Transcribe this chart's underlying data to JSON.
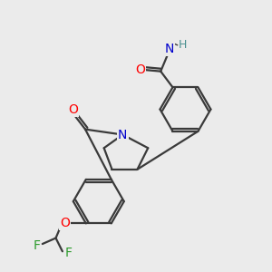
{
  "bg_color": "#ebebeb",
  "bond_color": "#3a3a3a",
  "bond_width": 1.6,
  "atom_colors": {
    "O": "#ff0000",
    "N_blue": "#0000cc",
    "N_teal": "#4a9090",
    "F": "#2a9a2a",
    "H": "#4a8888"
  },
  "font_size": 10
}
